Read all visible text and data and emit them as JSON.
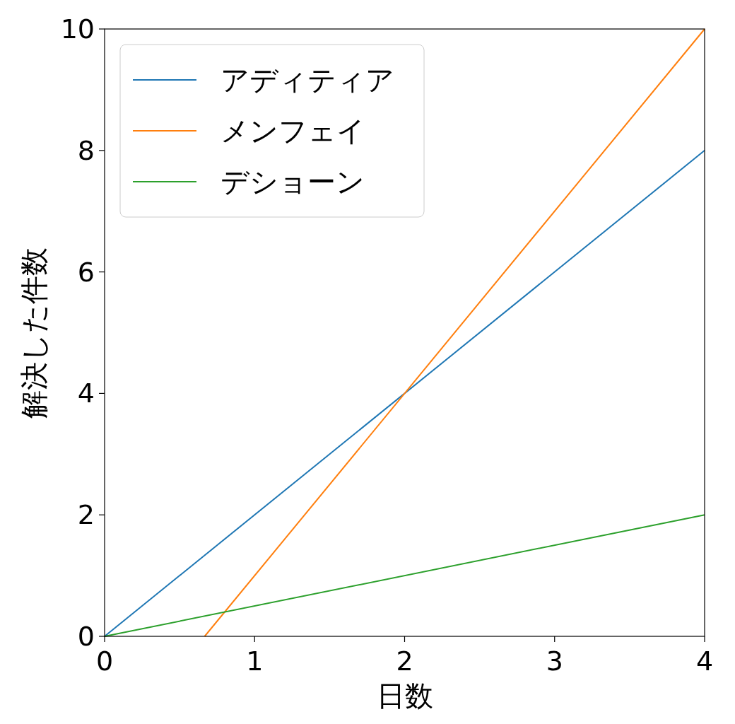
{
  "chart_data": {
    "type": "line",
    "xlabel": "日数",
    "ylabel": "解決した件数",
    "xlim": [
      0,
      4
    ],
    "ylim": [
      0,
      10
    ],
    "xticks": [
      0,
      1,
      2,
      3,
      4
    ],
    "yticks": [
      0,
      2,
      4,
      6,
      8,
      10
    ],
    "legend": "top left",
    "series": [
      {
        "name": "アディティア",
        "color": "#1f77b4",
        "x": [
          0,
          4
        ],
        "values": [
          0,
          8
        ]
      },
      {
        "name": "メンフェイ",
        "color": "#ff7f0e",
        "x": [
          0.667,
          4
        ],
        "values": [
          0,
          10
        ]
      },
      {
        "name": "デショーン",
        "color": "#2ca02c",
        "x": [
          0,
          4
        ],
        "values": [
          0,
          2
        ]
      }
    ]
  }
}
